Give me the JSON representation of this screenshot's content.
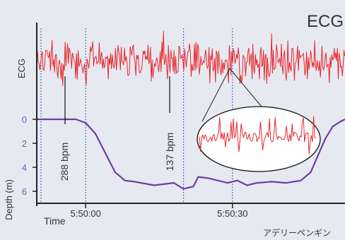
{
  "chart_data": {
    "type": "line",
    "title": "ECG",
    "footer": "アデリーペンギン",
    "colors": {
      "ecg": "#e8262c",
      "depth": "#6b3fa3",
      "axis": "#222222",
      "dashed_marker": "#3d5fb5",
      "ecg_label": "#e0565c",
      "depth_label": "#7a5aa8"
    },
    "ecg": {
      "series_label": "ECG",
      "annotations": [
        {
          "text": "288 bpm",
          "time_s": 3
        },
        {
          "text": "137 bpm",
          "time_s": 21
        }
      ],
      "inset_zoom_time_s": 26
    },
    "depth": {
      "ylabel": "Depth (m)",
      "yticks": [
        0,
        2,
        4,
        6
      ],
      "ylim": [
        0,
        7
      ],
      "points": [
        {
          "t": -10,
          "d": 0
        },
        {
          "t": -2,
          "d": 0
        },
        {
          "t": 0,
          "d": 0.3
        },
        {
          "t": 2,
          "d": 1.2
        },
        {
          "t": 4,
          "d": 2.8
        },
        {
          "t": 6,
          "d": 4.4
        },
        {
          "t": 8,
          "d": 5.1
        },
        {
          "t": 10,
          "d": 5.2
        },
        {
          "t": 14,
          "d": 5.5
        },
        {
          "t": 18,
          "d": 5.3
        },
        {
          "t": 20,
          "d": 5.8
        },
        {
          "t": 22,
          "d": 5.6
        },
        {
          "t": 23,
          "d": 4.8
        },
        {
          "t": 25,
          "d": 4.9
        },
        {
          "t": 27,
          "d": 5.1
        },
        {
          "t": 29,
          "d": 5.3
        },
        {
          "t": 31,
          "d": 5.1
        },
        {
          "t": 33,
          "d": 5.5
        },
        {
          "t": 35,
          "d": 5.3
        },
        {
          "t": 38,
          "d": 5.2
        },
        {
          "t": 41,
          "d": 5.3
        },
        {
          "t": 44,
          "d": 5.1
        },
        {
          "t": 46,
          "d": 4.4
        },
        {
          "t": 47.5,
          "d": 3.0
        },
        {
          "t": 49,
          "d": 1.6
        },
        {
          "t": 50.5,
          "d": 0.6
        },
        {
          "t": 52,
          "d": 0.2
        },
        {
          "t": 53,
          "d": 0
        }
      ]
    },
    "xaxis": {
      "xlabel": "Time",
      "xlim_s": [
        -10,
        53
      ],
      "ticks": [
        {
          "label": "5:50:00",
          "t": 0
        },
        {
          "label": "5:50:30",
          "t": 30
        }
      ],
      "dashed_markers_s": [
        -10,
        0,
        20,
        30
      ]
    }
  }
}
